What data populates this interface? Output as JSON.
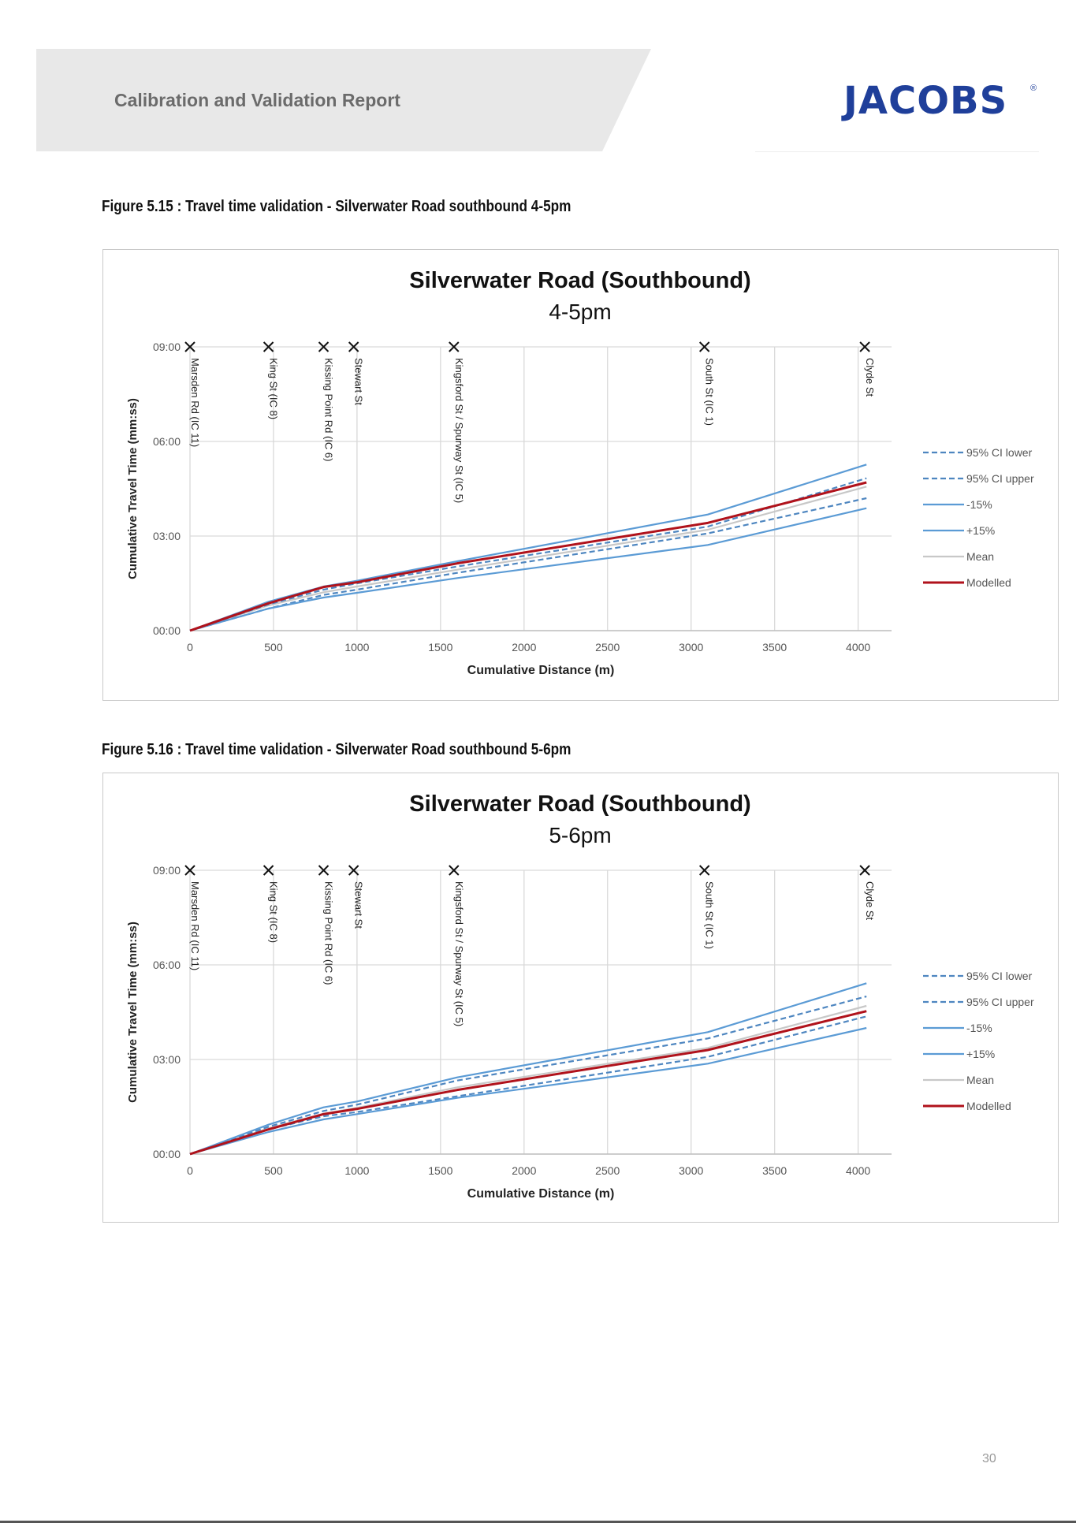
{
  "header": {
    "title": "Calibration and Validation Report",
    "logo_text": "JACOBS",
    "logo_mark": "®"
  },
  "figures": [
    {
      "caption": "Figure 5.15 : Travel time validation - Silverwater Road southbound 4-5pm"
    },
    {
      "caption": "Figure 5.16 : Travel time validation - Silverwater Road southbound 5-6pm"
    }
  ],
  "page_number": "30",
  "colors": {
    "ci": "#4e86c0",
    "band": "#5b9bd5",
    "mean": "#c8c8c8",
    "modelled": "#b0121b",
    "grid": "#d9d9d9",
    "header_band": "#e8e8e8",
    "logo": "#1f3f9a"
  },
  "chart_data": [
    {
      "type": "line",
      "title": "Silverwater Road (Southbound)",
      "subtitle": "4-5pm",
      "xlabel": "Cumulative Distance (m)",
      "ylabel": "Cumulative Travel Time (mm:ss)",
      "xlim": [
        0,
        4200
      ],
      "ylim": [
        0,
        540
      ],
      "x_ticks": [
        "0",
        "500",
        "1000",
        "1500",
        "2000",
        "2500",
        "3000",
        "3500",
        "4000"
      ],
      "y_ticks": [
        "00:00",
        "03:00",
        "06:00",
        "09:00"
      ],
      "grid": true,
      "legend_position": "right",
      "x": [
        0,
        470,
        800,
        1000,
        1600,
        3100,
        4050
      ],
      "markers": [
        {
          "label": "Marsden Rd (IC 11)",
          "x": 0
        },
        {
          "label": "King St (IC 8)",
          "x": 470
        },
        {
          "label": "Kissing Point Rd (IC 6)",
          "x": 800
        },
        {
          "label": "Stewart St",
          "x": 980
        },
        {
          "label": "Kingsford St / Spurway St (IC 5)",
          "x": 1580
        },
        {
          "label": "South St (IC 1)",
          "x": 3080
        },
        {
          "label": "Clyde St",
          "x": 4040
        }
      ],
      "series": [
        {
          "name": "95% CI lower",
          "style": "dashed",
          "color": "#4e86c0",
          "values": [
            0,
            42,
            68,
            78,
            110,
            185,
            252
          ]
        },
        {
          "name": "95% CI upper",
          "style": "dashed",
          "color": "#4e86c0",
          "values": [
            0,
            50,
            78,
            90,
            122,
            198,
            290
          ]
        },
        {
          "name": "-15%",
          "style": "solid",
          "color": "#5b9bd5",
          "values": [
            0,
            42,
            63,
            72,
            100,
            163,
            233
          ]
        },
        {
          "name": "+15%",
          "style": "solid",
          "color": "#5b9bd5",
          "values": [
            0,
            55,
            84,
            95,
            132,
            221,
            316
          ]
        },
        {
          "name": "Mean",
          "style": "solid",
          "color": "#c8c8c8",
          "values": [
            0,
            48,
            73,
            84,
            116,
            192,
            274
          ]
        },
        {
          "name": "Modelled",
          "style": "solid",
          "color": "#b0121b",
          "values": [
            0,
            52,
            83,
            92,
            128,
            205,
            282
          ]
        }
      ]
    },
    {
      "type": "line",
      "title": "Silverwater Road (Southbound)",
      "subtitle": "5-6pm",
      "xlabel": "Cumulative Distance (m)",
      "ylabel": "Cumulative Travel Time (mm:ss)",
      "xlim": [
        0,
        4200
      ],
      "ylim": [
        0,
        540
      ],
      "x_ticks": [
        "0",
        "500",
        "1000",
        "1500",
        "2000",
        "2500",
        "3000",
        "3500",
        "4000"
      ],
      "y_ticks": [
        "00:00",
        "03:00",
        "06:00",
        "09:00"
      ],
      "grid": true,
      "legend_position": "right",
      "x": [
        0,
        470,
        800,
        1000,
        1600,
        3100,
        4050
      ],
      "markers": [
        {
          "label": "Marsden Rd (IC 11)",
          "x": 0
        },
        {
          "label": "King St (IC 8)",
          "x": 470
        },
        {
          "label": "Kissing Point Rd (IC 6)",
          "x": 800
        },
        {
          "label": "Stewart St",
          "x": 980
        },
        {
          "label": "Kingsford St / Spurway St (IC 5)",
          "x": 1580
        },
        {
          "label": "South St (IC 1)",
          "x": 3080
        },
        {
          "label": "Clyde St",
          "x": 4040
        }
      ],
      "series": [
        {
          "name": "95% CI lower",
          "style": "dashed",
          "color": "#4e86c0",
          "values": [
            0,
            47,
            72,
            80,
            110,
            185,
            262
          ]
        },
        {
          "name": "95% CI upper",
          "style": "dashed",
          "color": "#4e86c0",
          "values": [
            0,
            52,
            82,
            94,
            140,
            220,
            300
          ]
        },
        {
          "name": "-15%",
          "style": "solid",
          "color": "#5b9bd5",
          "values": [
            0,
            42,
            66,
            76,
            107,
            172,
            240
          ]
        },
        {
          "name": "+15%",
          "style": "solid",
          "color": "#5b9bd5",
          "values": [
            0,
            56,
            89,
            100,
            146,
            232,
            325
          ]
        },
        {
          "name": "Mean",
          "style": "solid",
          "color": "#c8c8c8",
          "values": [
            0,
            49,
            77,
            88,
            127,
            202,
            282
          ]
        },
        {
          "name": "Modelled",
          "style": "solid",
          "color": "#b0121b",
          "values": [
            0,
            47,
            76,
            86,
            122,
            198,
            272
          ]
        }
      ]
    }
  ]
}
